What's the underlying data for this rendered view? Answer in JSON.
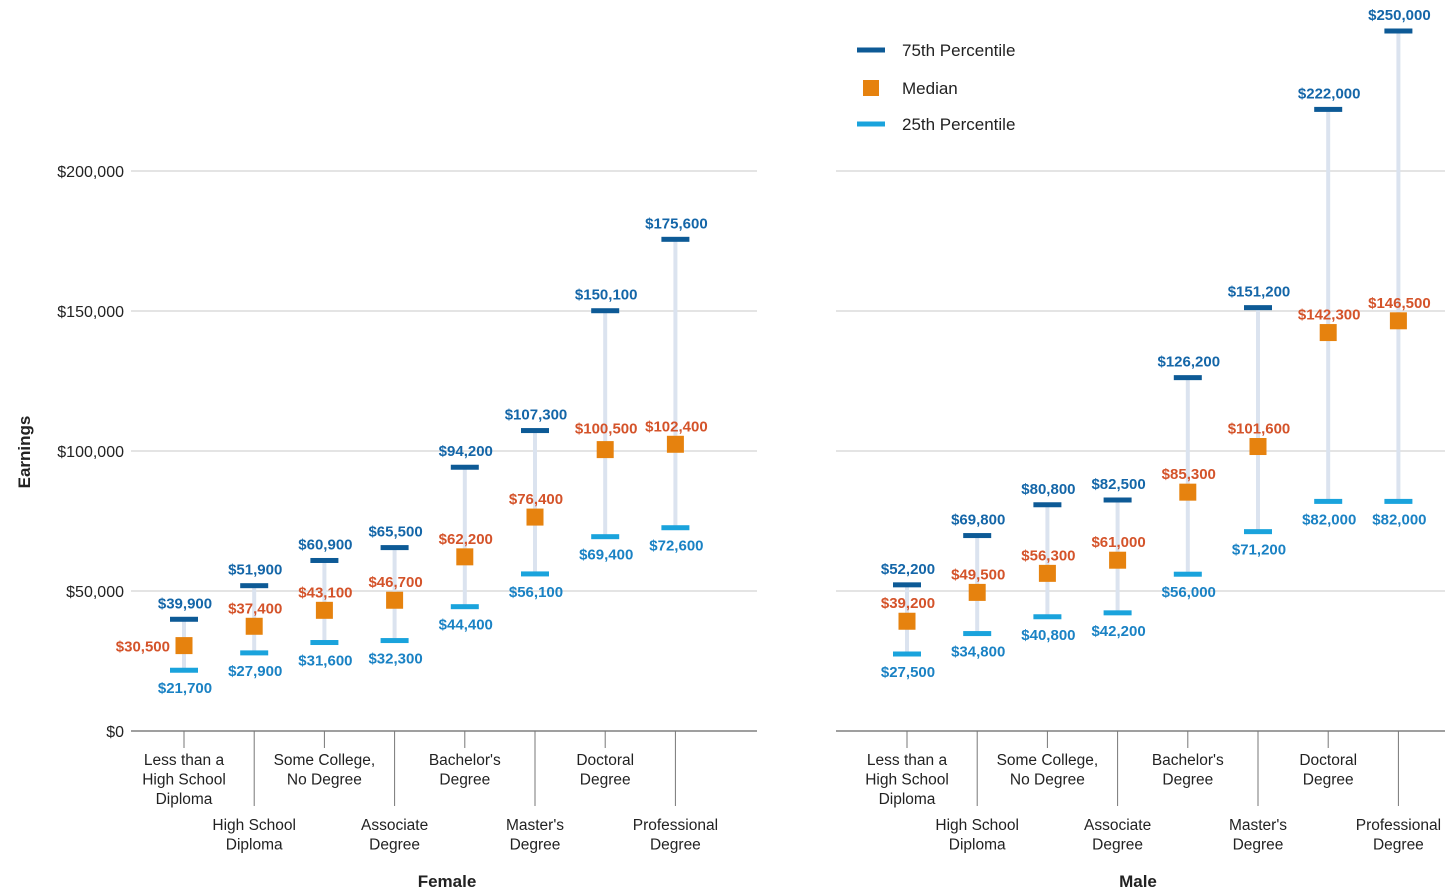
{
  "chart_data": {
    "type": "range",
    "ylabel": "Earnings",
    "ylim": [
      0,
      250000
    ],
    "yticks": [
      0,
      50000,
      100000,
      150000,
      200000
    ],
    "ytick_labels": [
      "$0",
      "$50,000",
      "$100,000",
      "$150,000",
      "$200,000"
    ],
    "legend": {
      "position": "top-right",
      "items": [
        {
          "key": "p75",
          "label": "75th Percentile"
        },
        {
          "key": "median",
          "label": "Median"
        },
        {
          "key": "p25",
          "label": "25th Percentile"
        }
      ]
    },
    "colors": {
      "p75": "#0d5a96",
      "median": "#e6820e",
      "p25": "#1aa3dc",
      "p75_text": "#1466a8",
      "median_text": "#d4532a",
      "p25_text": "#1a82c4",
      "range_line": "#dbe3ef",
      "grid": "#c8c8c8",
      "axis": "#666666"
    },
    "categories": [
      [
        "Less than a",
        "High School",
        "Diploma"
      ],
      [
        "High School",
        "Diploma"
      ],
      [
        "Some College,",
        "No Degree"
      ],
      [
        "Associate",
        "Degree"
      ],
      [
        "Bachelor's",
        "Degree"
      ],
      [
        "Master's",
        "Degree"
      ],
      [
        "Doctoral",
        "Degree"
      ],
      [
        "Professional",
        "Degree"
      ]
    ],
    "panels": [
      {
        "name": "Female",
        "p75": [
          39900,
          51900,
          60900,
          65500,
          94200,
          107300,
          150100,
          175600
        ],
        "median": [
          30500,
          37400,
          43100,
          46700,
          62200,
          76400,
          100500,
          102400
        ],
        "p25": [
          21700,
          27900,
          31600,
          32300,
          44400,
          56100,
          69400,
          72600
        ],
        "p75_labels": [
          "$39,900",
          "$51,900",
          "$60,900",
          "$65,500",
          "$94,200",
          "$107,300",
          "$150,100",
          "$175,600"
        ],
        "median_labels": [
          "$30,500",
          "$37,400",
          "$43,100",
          "$46,700",
          "$62,200",
          "$76,400",
          "$100,500",
          "$102,400"
        ],
        "p25_labels": [
          "$21,700",
          "$27,900",
          "$31,600",
          "$32,300",
          "$44,400",
          "$56,100",
          "$69,400",
          "$72,600"
        ]
      },
      {
        "name": "Male",
        "p75": [
          52200,
          69800,
          80800,
          82500,
          126200,
          151200,
          222000,
          250000
        ],
        "median": [
          39200,
          49500,
          56300,
          61000,
          85300,
          101600,
          142300,
          146500
        ],
        "p25": [
          27500,
          34800,
          40800,
          42200,
          56000,
          71200,
          82000,
          82000
        ],
        "p75_labels": [
          "$52,200",
          "$69,800",
          "$80,800",
          "$82,500",
          "$126,200",
          "$151,200",
          "$222,000",
          "$250,000"
        ],
        "median_labels": [
          "$39,200",
          "$49,500",
          "$56,300",
          "$61,000",
          "$85,300",
          "$101,600",
          "$142,300",
          "$146,500"
        ],
        "p25_labels": [
          "$27,500",
          "$34,800",
          "$40,800",
          "$42,200",
          "$56,000",
          "$71,200",
          "$82,000",
          "$82,000"
        ]
      }
    ]
  }
}
